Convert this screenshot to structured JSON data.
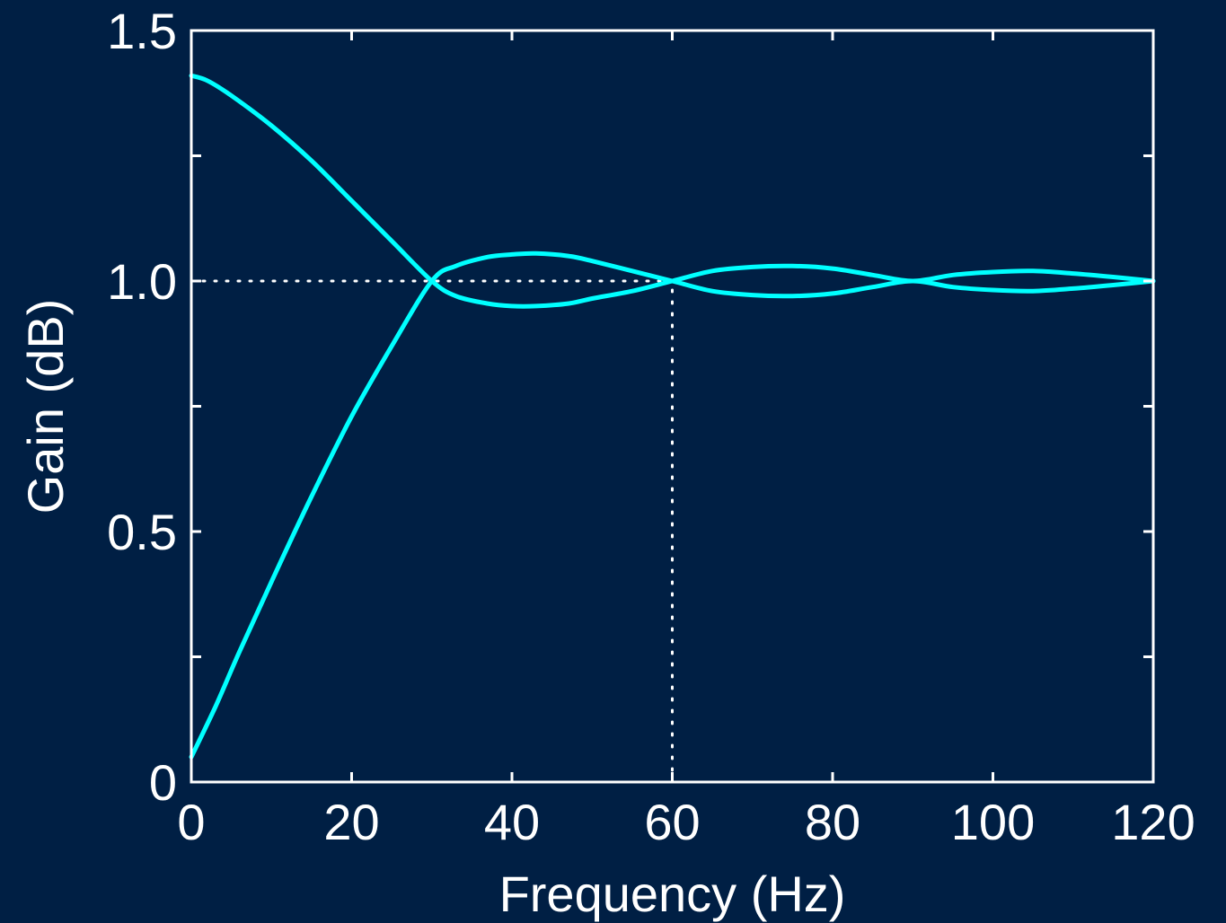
{
  "chart_data": {
    "type": "line",
    "title": "",
    "xlabel": "Frequency (Hz)",
    "ylabel": "Gain (dB)",
    "xlim": [
      0,
      120
    ],
    "ylim": [
      0,
      1.5
    ],
    "xticks": [
      0,
      20,
      40,
      60,
      80,
      100,
      120
    ],
    "xtick_labels": [
      "0",
      "20",
      "40",
      "60",
      "80",
      "100",
      "120"
    ],
    "yticks": [
      0,
      0.25,
      0.5,
      0.75,
      1.0,
      1.25,
      1.5
    ],
    "ytick_labels": [
      "0",
      "",
      "0.5",
      "",
      "1.0",
      "",
      "1.5"
    ],
    "grid": false,
    "line_color": "#00ffff",
    "axis_color": "#ffffff",
    "background": "#001f44",
    "reference_lines": [
      {
        "orientation": "horizontal",
        "value": 1.0,
        "from": 0,
        "to": 60,
        "style": "dotted"
      },
      {
        "orientation": "vertical",
        "value": 60,
        "from": 0,
        "to": 1.0,
        "style": "dotted"
      }
    ],
    "series": [
      {
        "x": [
          0,
          2,
          5,
          10,
          15,
          20,
          25,
          30,
          33,
          37,
          40,
          43,
          47,
          50,
          55,
          60,
          65,
          70,
          75,
          80,
          85,
          90,
          95,
          100,
          105,
          110,
          115,
          120
        ],
        "values": [
          1.41,
          1.4,
          1.37,
          1.31,
          1.24,
          1.16,
          1.08,
          1.0,
          0.97,
          0.955,
          0.95,
          0.95,
          0.955,
          0.965,
          0.98,
          1.0,
          1.02,
          1.028,
          1.03,
          1.025,
          1.012,
          1.0,
          1.012,
          1.018,
          1.02,
          1.015,
          1.008,
          1.0
        ]
      },
      {
        "x": [
          0,
          3,
          6,
          10,
          15,
          20,
          25,
          30,
          33,
          37,
          40,
          43,
          47,
          50,
          55,
          60,
          65,
          70,
          75,
          80,
          85,
          90,
          95,
          100,
          105,
          110,
          115,
          120
        ],
        "values": [
          0.05,
          0.15,
          0.26,
          0.4,
          0.57,
          0.73,
          0.87,
          1.0,
          1.03,
          1.048,
          1.053,
          1.055,
          1.05,
          1.04,
          1.02,
          1.0,
          0.98,
          0.972,
          0.97,
          0.975,
          0.988,
          1.0,
          0.988,
          0.982,
          0.98,
          0.985,
          0.992,
          1.0
        ]
      }
    ]
  }
}
